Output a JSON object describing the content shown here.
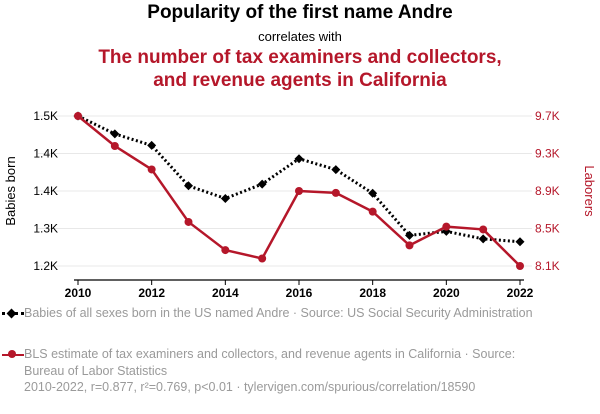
{
  "title": "Popularity of the first name Andre",
  "subtitle": "correlates with",
  "title2_line1": "The number of tax examiners and collectors,",
  "title2_line2": "and revenue agents in California",
  "colors": {
    "series1": "#000000",
    "series2": "#b5172a",
    "grid": "#e8e8e8",
    "muted": "#9a9a9a"
  },
  "chart_data": {
    "type": "line",
    "x": [
      2010,
      2011,
      2012,
      2013,
      2014,
      2015,
      2016,
      2017,
      2018,
      2019,
      2020,
      2021,
      2022
    ],
    "xticks": [
      "2010",
      "2012",
      "2014",
      "2016",
      "2018",
      "2020",
      "2022"
    ],
    "xlim": [
      2010,
      2022
    ],
    "ylabel_left": "Babies born",
    "ylabel_right": "Laborers",
    "yticks_left": [
      "1.5K",
      "1.4K",
      "1.4K",
      "1.3K",
      "1.2K"
    ],
    "yticks_right": [
      "9.7K",
      "9.3K",
      "8.9K",
      "8.5K",
      "8.1K"
    ],
    "ylim_left": [
      1180,
      1440
    ],
    "ylim_right": [
      8100,
      9700
    ],
    "grid": true,
    "series": [
      {
        "name": "Babies of all sexes born in the US named Andre",
        "axis": "left",
        "style": "dotted",
        "marker": "diamond",
        "values": [
          1440,
          1409,
          1389,
          1319,
          1297,
          1322,
          1366,
          1347,
          1306,
          1233,
          1240,
          1227,
          1222
        ]
      },
      {
        "name": "BLS estimate of tax examiners and collectors, and revenue agents in California",
        "axis": "right",
        "style": "solid",
        "marker": "circle",
        "values": [
          9700,
          9380,
          9130,
          8570,
          8270,
          8180,
          8900,
          8880,
          8680,
          8320,
          8520,
          8490,
          8100
        ]
      }
    ]
  },
  "legend": [
    {
      "label": "Babies of all sexes born in the US named Andre · Source: US Social Security Administration"
    },
    {
      "label": "BLS estimate of tax examiners and collectors, and revenue agents in California · Source: Bureau of Labor Statistics"
    }
  ],
  "footer": "2010-2022, r=0.877, r²=0.769, p<0.01 · tylervigen.com/spurious/correlation/18590"
}
